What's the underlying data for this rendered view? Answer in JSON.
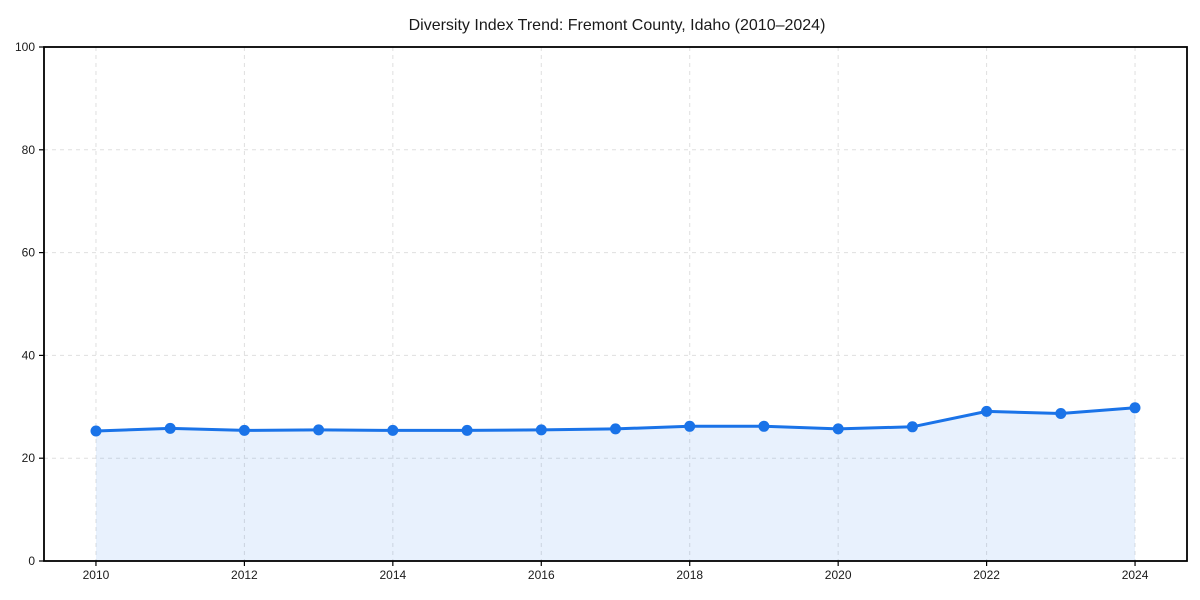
{
  "page": {
    "background": "#ffffff"
  },
  "chart_data": {
    "type": "line",
    "title": "Diversity Index Trend: Fremont County, Idaho (2010–2024)",
    "x": [
      2010,
      2011,
      2012,
      2013,
      2014,
      2015,
      2016,
      2017,
      2018,
      2019,
      2020,
      2021,
      2022,
      2023,
      2024
    ],
    "series": [
      {
        "name": "Diversity Index",
        "values": [
          25.3,
          25.8,
          25.4,
          25.5,
          25.4,
          25.4,
          25.5,
          25.7,
          26.2,
          26.2,
          25.7,
          26.1,
          29.1,
          28.7,
          29.8
        ]
      }
    ],
    "xlabel": "",
    "ylabel": "",
    "xlim": [
      2009.3,
      2024.7
    ],
    "ylim": [
      0,
      100
    ],
    "x_ticks": [
      2010,
      2012,
      2014,
      2016,
      2018,
      2020,
      2022,
      2024
    ],
    "y_ticks": [
      0,
      20,
      40,
      60,
      80,
      100
    ],
    "grid": true,
    "grid_style": "dashed",
    "legend": "none",
    "area_fill_to_zero": true,
    "marker": "circle",
    "marker_radius": 5.5,
    "line_width": 3,
    "colors": {
      "line": "#1a73e8",
      "marker": "#1a73e8",
      "fill": "#1a73e8",
      "fill_opacity": 0.1,
      "grid": "#dfdfdf",
      "axis": "#000000",
      "text": "#1a1a1a"
    }
  }
}
